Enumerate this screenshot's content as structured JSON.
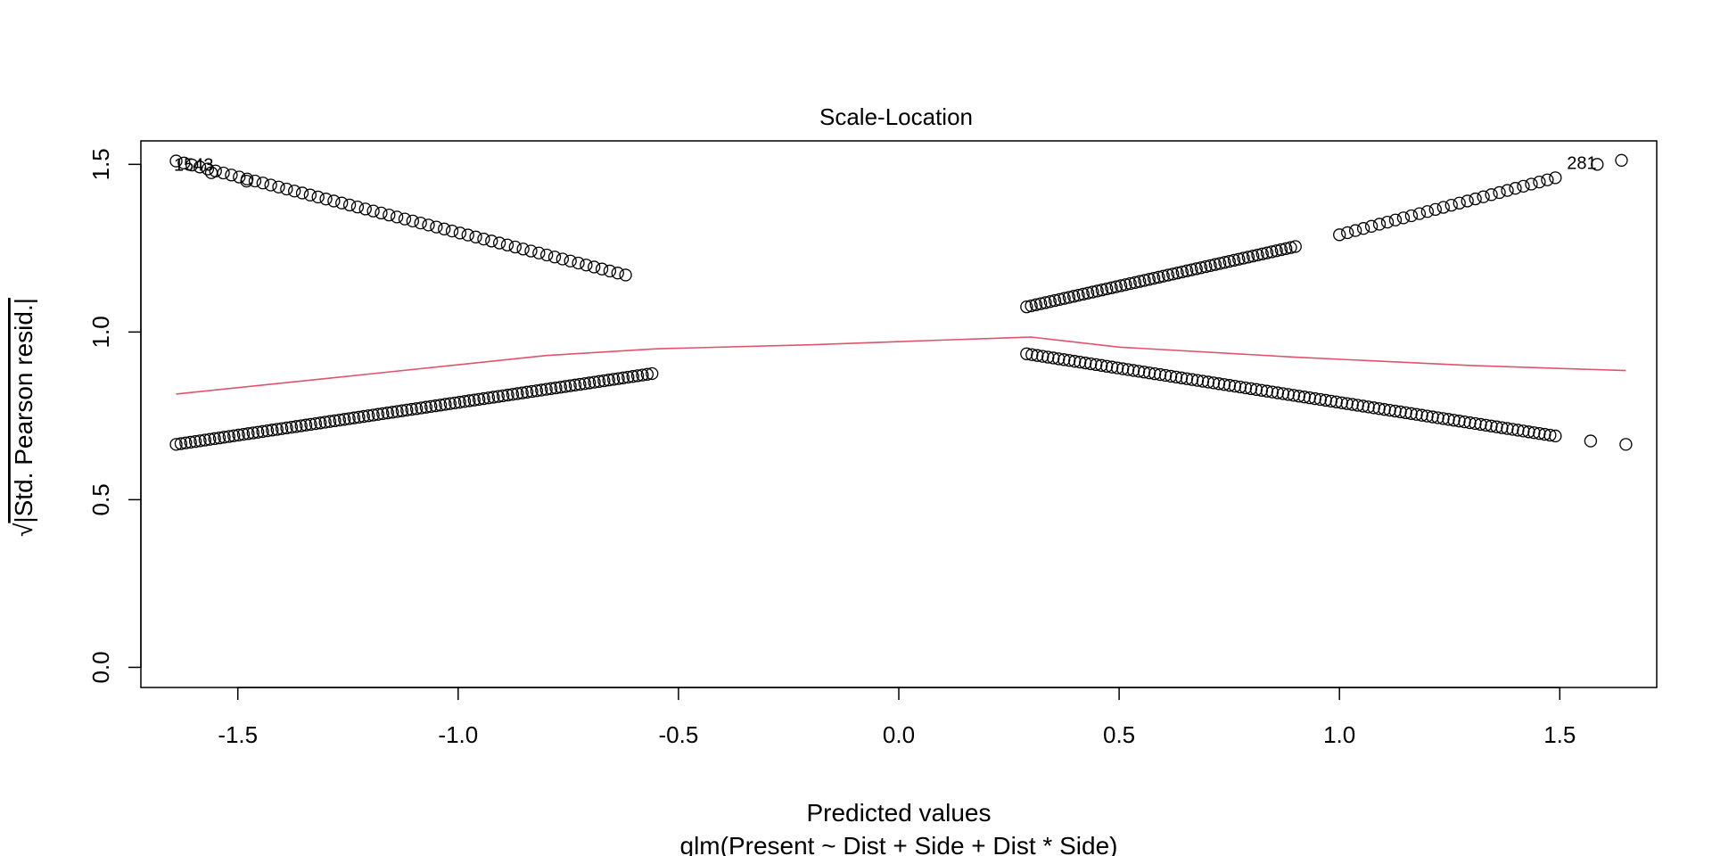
{
  "chart_data": {
    "type": "scatter",
    "title": "Scale-Location",
    "xlabel": "Predicted values",
    "subtitle": "glm(Present ~ Dist + Side + Dist * Side)",
    "ylabel_radical": "√",
    "ylabel": "|Std. Pearson resid.|",
    "xlim": [
      -1.72,
      1.72
    ],
    "ylim": [
      -0.06,
      1.57
    ],
    "xticks": [
      -1.5,
      -1.0,
      -0.5,
      0.0,
      0.5,
      1.0,
      1.5
    ],
    "xtick_labels": [
      "-1.5",
      "-1.0",
      "-0.5",
      "0.0",
      "0.5",
      "1.0",
      "1.5"
    ],
    "yticks": [
      0.0,
      0.5,
      1.0,
      1.5
    ],
    "ytick_labels": [
      "0.0",
      "0.5",
      "1.0",
      "1.5"
    ],
    "grid": false,
    "point_color": "#000000",
    "smoother_color": "#DF536B",
    "segments": [
      {
        "x0": -1.64,
        "y0": 1.51,
        "x1": -0.62,
        "y1": 1.17,
        "n": 58
      },
      {
        "x0": -1.64,
        "y0": 0.665,
        "x1": -0.56,
        "y1": 0.876,
        "n": 100
      },
      {
        "x0": 0.29,
        "y0": 1.075,
        "x1": 0.9,
        "y1": 1.255,
        "n": 58
      },
      {
        "x0": 1.0,
        "y0": 1.29,
        "x1": 1.49,
        "y1": 1.46,
        "n": 28
      },
      {
        "x0": 0.29,
        "y0": 0.935,
        "x1": 1.49,
        "y1": 0.69,
        "n": 100
      }
    ],
    "extra_points": [
      {
        "x": 1.64,
        "y": 1.512
      },
      {
        "x": 1.585,
        "y": 1.5
      },
      {
        "x": -1.56,
        "y": 1.475
      },
      {
        "x": -1.48,
        "y": 1.45
      },
      {
        "x": 1.57,
        "y": 0.675
      },
      {
        "x": 1.65,
        "y": 0.665
      }
    ],
    "smoother": {
      "x": [
        -1.64,
        -1.2,
        -0.8,
        -0.55,
        -0.2,
        0.1,
        0.3,
        0.5,
        0.9,
        1.3,
        1.65
      ],
      "y": [
        0.815,
        0.875,
        0.93,
        0.95,
        0.962,
        0.976,
        0.985,
        0.955,
        0.925,
        0.9,
        0.885
      ]
    },
    "annotations": [
      {
        "text": "1543",
        "x": -1.6,
        "y": 1.5
      },
      {
        "text": "281",
        "x": 1.55,
        "y": 1.505
      }
    ]
  }
}
